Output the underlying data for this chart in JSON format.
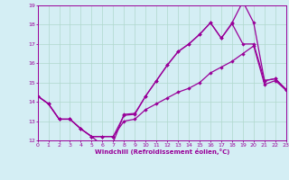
{
  "xlabel": "Windchill (Refroidissement éolien,°C)",
  "background_color": "#d4eef4",
  "line_color": "#990099",
  "grid_color": "#b0d8cc",
  "x_min": 0,
  "x_max": 23,
  "y_min": 12,
  "y_max": 19,
  "line1_x": [
    0,
    1,
    2,
    3,
    4,
    5,
    6,
    7,
    8,
    9,
    10,
    11,
    12,
    13,
    14,
    15,
    16,
    17,
    18,
    19,
    20,
    21,
    22,
    23
  ],
  "line1_y": [
    14.3,
    13.9,
    13.1,
    13.1,
    12.6,
    12.2,
    11.75,
    11.9,
    13.35,
    13.4,
    14.3,
    15.1,
    15.9,
    16.6,
    17.0,
    17.5,
    18.1,
    17.3,
    18.1,
    19.2,
    18.1,
    15.1,
    15.2,
    14.6
  ],
  "line2_x": [
    0,
    1,
    2,
    3,
    4,
    5,
    6,
    7,
    8,
    9,
    10,
    11,
    12,
    13,
    14,
    15,
    16,
    17,
    18,
    19,
    20,
    21,
    22,
    23
  ],
  "line2_y": [
    14.3,
    13.9,
    13.1,
    13.1,
    12.6,
    12.2,
    12.2,
    12.2,
    13.3,
    13.35,
    14.3,
    15.1,
    15.9,
    16.6,
    17.0,
    17.5,
    18.1,
    17.3,
    18.05,
    17.0,
    17.0,
    15.1,
    15.2,
    14.65
  ],
  "line3_x": [
    0,
    1,
    2,
    3,
    4,
    5,
    6,
    7,
    8,
    9,
    10,
    11,
    12,
    13,
    14,
    15,
    16,
    17,
    18,
    19,
    20,
    21,
    22,
    23
  ],
  "line3_y": [
    14.3,
    13.9,
    13.1,
    13.1,
    12.6,
    12.2,
    12.2,
    12.2,
    13.0,
    13.1,
    13.6,
    13.9,
    14.2,
    14.5,
    14.7,
    15.0,
    15.5,
    15.8,
    16.1,
    16.5,
    16.9,
    14.9,
    15.1,
    14.6
  ]
}
